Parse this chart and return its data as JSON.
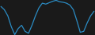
{
  "x": [
    0,
    1,
    2,
    3,
    4,
    5,
    6,
    7,
    8,
    9,
    10,
    11,
    12,
    13,
    14,
    15,
    16,
    17,
    18,
    19,
    20,
    21,
    22,
    23,
    24,
    25,
    26,
    27
  ],
  "y": [
    1.5,
    0.8,
    -0.5,
    -2.8,
    -4.5,
    -3.2,
    -2.5,
    -3.8,
    -4.2,
    -2.5,
    -0.5,
    1.2,
    2.2,
    2.0,
    2.3,
    2.6,
    2.8,
    2.5,
    2.4,
    2.2,
    1.8,
    0.8,
    -1.5,
    -4.0,
    -3.8,
    -2.0,
    -0.5,
    0.5
  ],
  "line_color": "#2b8cc4",
  "line_width": 0.9,
  "background_color": "#1a1a1a"
}
